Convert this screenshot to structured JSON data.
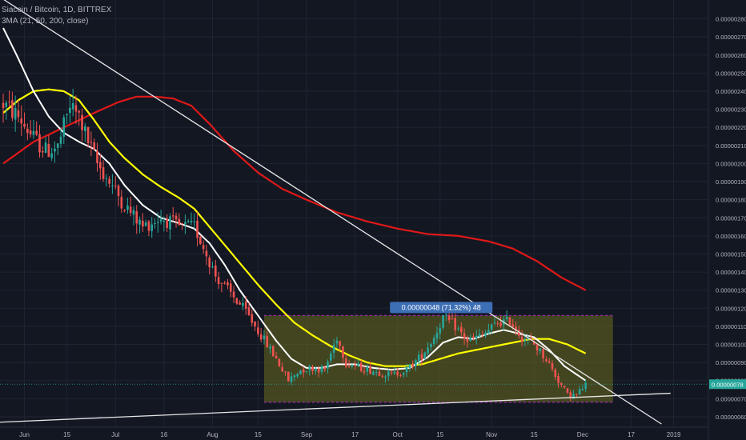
{
  "header": {
    "symbol_line": "Siacoin / Bitcoin, 1D, BITTREX",
    "indicator_line": "3MA (21, 50, 200, close)"
  },
  "chart_data": {
    "type": "candlestick",
    "title": "Siacoin / Bitcoin, 1D, BITTREX",
    "x_ticks": [
      "Jun",
      "15",
      "Jul",
      "16",
      "Aug",
      "15",
      "Sep",
      "17",
      "Oct",
      "15",
      "Nov",
      "15",
      "Dec",
      "17",
      "2019"
    ],
    "y_ticks": [
      "0.00000280",
      "0.00000270",
      "0.00000260",
      "0.00000250",
      "0.00000240",
      "0.00000230",
      "0.00000220",
      "0.00000210",
      "0.00000200",
      "0.00000190",
      "0.00000180",
      "0.00000170",
      "0.00000160",
      "0.00000150",
      "0.00000140",
      "0.00000130",
      "0.00000120",
      "0.00000110",
      "0.00000100",
      "0.00000090",
      "0.00000080",
      "0.00000070",
      "0.00000060"
    ],
    "ylim": [
      5.6e-07,
      2.86e-06
    ],
    "last_price": "0.00000078",
    "colors": {
      "up": "#26a69a",
      "down": "#ef5350",
      "ma21": "#ffffff",
      "ma50": "#ffff00",
      "ma200": "#e01818",
      "range_fill": "#6b6b1f",
      "range_border": "#9c27b0"
    },
    "range_box": {
      "label": "0.00000048 (71.32%) 48",
      "high": 1.16e-06,
      "low": 6.8e-07
    },
    "keypoints": [
      {
        "day": 0,
        "p": 233
      },
      {
        "day": 5,
        "p": 226
      },
      {
        "day": 10,
        "p": 214
      },
      {
        "day": 14,
        "p": 207
      },
      {
        "day": 18,
        "p": 209
      },
      {
        "day": 22,
        "p": 232
      },
      {
        "day": 25,
        "p": 226
      },
      {
        "day": 28,
        "p": 212
      },
      {
        "day": 31,
        "p": 200
      },
      {
        "day": 35,
        "p": 190
      },
      {
        "day": 40,
        "p": 177
      },
      {
        "day": 46,
        "p": 165
      },
      {
        "day": 52,
        "p": 170
      },
      {
        "day": 58,
        "p": 165
      },
      {
        "day": 63,
        "p": 165
      },
      {
        "day": 66,
        "p": 154
      },
      {
        "day": 70,
        "p": 138
      },
      {
        "day": 75,
        "p": 128
      },
      {
        "day": 80,
        "p": 118
      },
      {
        "day": 85,
        "p": 105
      },
      {
        "day": 90,
        "p": 92
      },
      {
        "day": 94,
        "p": 80
      },
      {
        "day": 98,
        "p": 86
      },
      {
        "day": 102,
        "p": 87
      },
      {
        "day": 106,
        "p": 86
      },
      {
        "day": 110,
        "p": 104
      },
      {
        "day": 113,
        "p": 90
      },
      {
        "day": 118,
        "p": 87
      },
      {
        "day": 123,
        "p": 85
      },
      {
        "day": 128,
        "p": 83
      },
      {
        "day": 133,
        "p": 86
      },
      {
        "day": 138,
        "p": 94
      },
      {
        "day": 142,
        "p": 104
      },
      {
        "day": 145,
        "p": 115
      },
      {
        "day": 149,
        "p": 110
      },
      {
        "day": 153,
        "p": 102
      },
      {
        "day": 158,
        "p": 105
      },
      {
        "day": 163,
        "p": 112
      },
      {
        "day": 167,
        "p": 113
      },
      {
        "day": 171,
        "p": 104
      },
      {
        "day": 175,
        "p": 100
      },
      {
        "day": 179,
        "p": 92
      },
      {
        "day": 183,
        "p": 80
      },
      {
        "day": 186,
        "p": 72
      },
      {
        "day": 189,
        "p": 72
      },
      {
        "day": 192,
        "p": 78
      }
    ],
    "ma21": [
      {
        "day": 0,
        "p": 275
      },
      {
        "day": 5,
        "p": 258
      },
      {
        "day": 10,
        "p": 240
      },
      {
        "day": 15,
        "p": 226
      },
      {
        "day": 20,
        "p": 217
      },
      {
        "day": 25,
        "p": 212
      },
      {
        "day": 30,
        "p": 208
      },
      {
        "day": 35,
        "p": 200
      },
      {
        "day": 40,
        "p": 188
      },
      {
        "day": 46,
        "p": 177
      },
      {
        "day": 52,
        "p": 170
      },
      {
        "day": 58,
        "p": 167
      },
      {
        "day": 63,
        "p": 164
      },
      {
        "day": 68,
        "p": 156
      },
      {
        "day": 73,
        "p": 144
      },
      {
        "day": 78,
        "p": 130
      },
      {
        "day": 84,
        "p": 116
      },
      {
        "day": 90,
        "p": 102
      },
      {
        "day": 95,
        "p": 92
      },
      {
        "day": 100,
        "p": 87
      },
      {
        "day": 105,
        "p": 87
      },
      {
        "day": 110,
        "p": 89
      },
      {
        "day": 116,
        "p": 89
      },
      {
        "day": 122,
        "p": 87
      },
      {
        "day": 128,
        "p": 86
      },
      {
        "day": 134,
        "p": 87
      },
      {
        "day": 140,
        "p": 93
      },
      {
        "day": 145,
        "p": 101
      },
      {
        "day": 150,
        "p": 104
      },
      {
        "day": 155,
        "p": 103
      },
      {
        "day": 160,
        "p": 106
      },
      {
        "day": 165,
        "p": 108
      },
      {
        "day": 170,
        "p": 106
      },
      {
        "day": 175,
        "p": 104
      },
      {
        "day": 180,
        "p": 97
      },
      {
        "day": 185,
        "p": 88
      },
      {
        "day": 192,
        "p": 80
      }
    ],
    "ma50": [
      {
        "day": 0,
        "p": 228
      },
      {
        "day": 5,
        "p": 235
      },
      {
        "day": 10,
        "p": 240
      },
      {
        "day": 15,
        "p": 241
      },
      {
        "day": 20,
        "p": 240
      },
      {
        "day": 25,
        "p": 235
      },
      {
        "day": 30,
        "p": 224
      },
      {
        "day": 35,
        "p": 212
      },
      {
        "day": 40,
        "p": 203
      },
      {
        "day": 46,
        "p": 194
      },
      {
        "day": 52,
        "p": 187
      },
      {
        "day": 58,
        "p": 181
      },
      {
        "day": 63,
        "p": 175
      },
      {
        "day": 68,
        "p": 165
      },
      {
        "day": 73,
        "p": 155
      },
      {
        "day": 78,
        "p": 145
      },
      {
        "day": 84,
        "p": 133
      },
      {
        "day": 90,
        "p": 122
      },
      {
        "day": 96,
        "p": 112
      },
      {
        "day": 102,
        "p": 105
      },
      {
        "day": 108,
        "p": 99
      },
      {
        "day": 114,
        "p": 94
      },
      {
        "day": 120,
        "p": 90
      },
      {
        "day": 126,
        "p": 88
      },
      {
        "day": 132,
        "p": 88
      },
      {
        "day": 138,
        "p": 89
      },
      {
        "day": 144,
        "p": 92
      },
      {
        "day": 150,
        "p": 95
      },
      {
        "day": 156,
        "p": 97
      },
      {
        "day": 162,
        "p": 99
      },
      {
        "day": 168,
        "p": 101
      },
      {
        "day": 174,
        "p": 103
      },
      {
        "day": 180,
        "p": 103
      },
      {
        "day": 186,
        "p": 100
      },
      {
        "day": 192,
        "p": 95
      }
    ],
    "ma200": [
      {
        "day": 0,
        "p": 200
      },
      {
        "day": 10,
        "p": 212
      },
      {
        "day": 20,
        "p": 220
      },
      {
        "day": 30,
        "p": 228
      },
      {
        "day": 38,
        "p": 234
      },
      {
        "day": 44,
        "p": 237
      },
      {
        "day": 50,
        "p": 237
      },
      {
        "day": 56,
        "p": 236
      },
      {
        "day": 62,
        "p": 232
      },
      {
        "day": 68,
        "p": 222
      },
      {
        "day": 76,
        "p": 207
      },
      {
        "day": 84,
        "p": 195
      },
      {
        "day": 92,
        "p": 186
      },
      {
        "day": 100,
        "p": 180
      },
      {
        "day": 110,
        "p": 173
      },
      {
        "day": 120,
        "p": 168
      },
      {
        "day": 130,
        "p": 164
      },
      {
        "day": 140,
        "p": 161
      },
      {
        "day": 150,
        "p": 160
      },
      {
        "day": 160,
        "p": 157
      },
      {
        "day": 168,
        "p": 153
      },
      {
        "day": 176,
        "p": 146
      },
      {
        "day": 184,
        "p": 137
      },
      {
        "day": 192,
        "p": 130
      }
    ]
  }
}
